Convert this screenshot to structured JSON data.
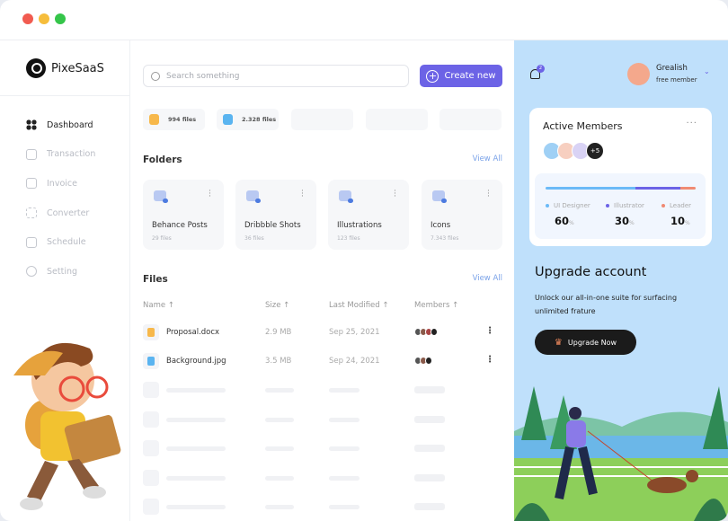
{
  "window": {
    "controls": [
      "close",
      "minimize",
      "maximize"
    ]
  },
  "brand": {
    "name": "PixeSaaS"
  },
  "sidebar": {
    "items": [
      {
        "label": "Dashboard",
        "icon": "grid-icon",
        "active": true
      },
      {
        "label": "Transaction",
        "icon": "wallet-icon"
      },
      {
        "label": "Invoice",
        "icon": "chart-icon"
      },
      {
        "label": "Converter",
        "icon": "converter-icon"
      },
      {
        "label": "Schedule",
        "icon": "calendar-icon"
      },
      {
        "label": "Setting",
        "icon": "gear-icon"
      }
    ]
  },
  "search": {
    "placeholder": "Search something"
  },
  "create_label": "Create new",
  "stats": [
    {
      "label": "994 files",
      "color": "#f7b84b"
    },
    {
      "label": "2.328 files",
      "color": "#5ab4f0"
    }
  ],
  "folders": {
    "title": "Folders",
    "view_all": "View All",
    "items": [
      {
        "name": "Behance Posts",
        "count": "29 files"
      },
      {
        "name": "Dribbble Shots",
        "count": "36 files"
      },
      {
        "name": "Illustrations",
        "count": "123 files"
      },
      {
        "name": "Icons",
        "count": "7.343 files"
      }
    ]
  },
  "files": {
    "title": "Files",
    "view_all": "View All",
    "columns": [
      "Name ↑",
      "Size ↑",
      "Last Modified ↑",
      "Members ↑"
    ],
    "rows": [
      {
        "name": "Proposal.docx",
        "size": "2.9 MB",
        "modified": "Sep 25, 2021",
        "members": 4,
        "color": "#f7b84b"
      },
      {
        "name": "Background.jpg",
        "size": "3.5 MB",
        "modified": "Sep 24, 2021",
        "members": 3,
        "color": "#5ab4f0"
      }
    ]
  },
  "user": {
    "name": "Grealish",
    "role": "free member",
    "notifications": "2"
  },
  "active_members": {
    "title": "Active Members",
    "extra": "+5",
    "breakdown": [
      {
        "label": "UI Designer",
        "value": "60",
        "unit": "%",
        "color": "#6bbaf7"
      },
      {
        "label": "Illustrator",
        "value": "30",
        "unit": "%",
        "color": "#6c63e6"
      },
      {
        "label": "Leader",
        "value": "10",
        "unit": "%",
        "color": "#f08a72"
      }
    ]
  },
  "upgrade": {
    "title": "Upgrade account",
    "description": "Unlock our all-in-one suite for surfacing unlimited frature",
    "button": "Upgrade Now"
  },
  "colors": {
    "accent": "#6c63e6",
    "panel": "#bfe0fb"
  }
}
